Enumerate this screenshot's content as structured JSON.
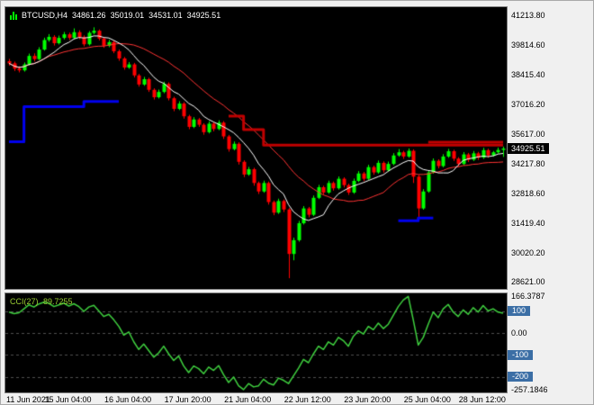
{
  "colors": {
    "chart_bg": "#000000",
    "frame_bg": "#f0f0f0",
    "candle_up": "#00ff00",
    "candle_down": "#ff0000",
    "ma_fast": "#ffffff",
    "ma_slow": "#ff3333",
    "trend_up": "#0000ee",
    "trend_down": "#c00000",
    "cci_line": "#3fd03f",
    "cci_label": "#9acd32",
    "level_tag_bg": "#3b6ea5",
    "axis_text": "#000000",
    "grid_line": "#4f4f4f",
    "price_tag_bg": "#000000",
    "price_tag_text": "#ffffff"
  },
  "header": {
    "symbol": "BTCUSD,H4",
    "open": "34861.26",
    "high": "35019.01",
    "low": "34531.01",
    "close": "34925.51"
  },
  "indicator": {
    "label": "CCI(27)",
    "value": "89.7255"
  },
  "icons": {
    "title_icon": "candlestick-chart"
  },
  "chart_data": [
    {
      "type": "candlestick",
      "symbol": "BTCUSD",
      "timeframe": "H4",
      "last_candle": {
        "open": 34861.26,
        "high": 35019.01,
        "low": 34531.01,
        "close": 34925.51
      },
      "current_price": 34925.51,
      "y_axis": {
        "ylim": [
          28300,
          41600
        ],
        "tick_values": [
          41213.8,
          39814.6,
          38415.4,
          37016.2,
          35617.0,
          34217.8,
          32818.6,
          31419.4,
          30020.2,
          28621.0
        ]
      },
      "x_axis": {
        "labels": [
          "11 Jun 2021",
          "15 Jun 04:00",
          "16 Jun 04:00",
          "17 Jun 20:00",
          "21 Jun 04:00",
          "22 Jun 12:00",
          "23 Jun 20:00",
          "25 Jun 04:00",
          "28 Jun 12:00"
        ],
        "tick_indices": [
          0,
          12,
          24,
          36,
          48,
          60,
          72,
          84,
          95
        ]
      },
      "candles": [
        [
          39050,
          39160,
          38840,
          38950
        ],
        [
          38950,
          39030,
          38590,
          38700
        ],
        [
          38700,
          38810,
          38520,
          38620
        ],
        [
          38620,
          38990,
          38560,
          38900
        ],
        [
          38900,
          39410,
          38840,
          39300
        ],
        [
          39300,
          39420,
          39040,
          39150
        ],
        [
          39150,
          39710,
          39100,
          39600
        ],
        [
          39600,
          40160,
          39550,
          40050
        ],
        [
          40050,
          40330,
          39970,
          40200
        ],
        [
          40200,
          40280,
          39790,
          39900
        ],
        [
          39900,
          40260,
          39840,
          40150
        ],
        [
          40150,
          40430,
          40080,
          40320
        ],
        [
          40320,
          40400,
          40050,
          40150
        ],
        [
          40150,
          40600,
          40100,
          40420
        ],
        [
          40420,
          40510,
          40090,
          40180
        ],
        [
          40180,
          40270,
          39750,
          39850
        ],
        [
          39850,
          40470,
          39790,
          40390
        ],
        [
          40390,
          40650,
          40320,
          40490
        ],
        [
          40490,
          40550,
          40030,
          40120
        ],
        [
          40120,
          40190,
          39680,
          39780
        ],
        [
          39780,
          40060,
          39710,
          39950
        ],
        [
          39950,
          40020,
          39430,
          39520
        ],
        [
          39520,
          39600,
          39070,
          39180
        ],
        [
          39180,
          39250,
          38650,
          38750
        ],
        [
          38750,
          39010,
          38690,
          38900
        ],
        [
          38900,
          38970,
          38280,
          38380
        ],
        [
          38380,
          38450,
          37850,
          37950
        ],
        [
          37950,
          38310,
          37890,
          38200
        ],
        [
          38200,
          38270,
          37600,
          37700
        ],
        [
          37700,
          37770,
          37240,
          37350
        ],
        [
          37350,
          37710,
          37290,
          37600
        ],
        [
          37600,
          38080,
          37540,
          37980
        ],
        [
          37980,
          38050,
          37200,
          37300
        ],
        [
          37300,
          37370,
          36690,
          36800
        ],
        [
          36800,
          37160,
          36740,
          37050
        ],
        [
          37050,
          37120,
          36340,
          36450
        ],
        [
          36450,
          36520,
          35840,
          35950
        ],
        [
          35950,
          36410,
          35890,
          36300
        ],
        [
          36300,
          36370,
          35950,
          36050
        ],
        [
          36050,
          36120,
          35580,
          35700
        ],
        [
          35700,
          36210,
          35640,
          36100
        ],
        [
          36100,
          36170,
          35740,
          35850
        ],
        [
          35850,
          36260,
          35790,
          36150
        ],
        [
          36150,
          36220,
          35380,
          35500
        ],
        [
          35500,
          35570,
          34780,
          34900
        ],
        [
          34900,
          35260,
          34840,
          35150
        ],
        [
          35150,
          35220,
          34170,
          34300
        ],
        [
          34300,
          34370,
          33580,
          33700
        ],
        [
          33700,
          34060,
          33640,
          33950
        ],
        [
          33950,
          34020,
          33170,
          33300
        ],
        [
          33300,
          33370,
          32780,
          32900
        ],
        [
          32900,
          33410,
          32840,
          33300
        ],
        [
          33300,
          33370,
          32280,
          32400
        ],
        [
          32400,
          32470,
          31780,
          31900
        ],
        [
          31900,
          32560,
          31840,
          32450
        ],
        [
          32450,
          32520,
          31930,
          32050
        ],
        [
          32050,
          32120,
          28805,
          29950
        ],
        [
          29950,
          30720,
          29650,
          30600
        ],
        [
          30600,
          31510,
          30530,
          31400
        ],
        [
          31400,
          32210,
          31340,
          32100
        ],
        [
          32100,
          32170,
          31680,
          31800
        ],
        [
          31800,
          32710,
          31740,
          32600
        ],
        [
          32600,
          33210,
          32540,
          33100
        ],
        [
          33100,
          33170,
          32740,
          32850
        ],
        [
          32850,
          33410,
          32790,
          33300
        ],
        [
          33300,
          33370,
          32940,
          33050
        ],
        [
          33050,
          33610,
          32990,
          33500
        ],
        [
          33500,
          33570,
          33090,
          33200
        ],
        [
          33200,
          33270,
          32740,
          32850
        ],
        [
          32850,
          33510,
          32790,
          33400
        ],
        [
          33400,
          33860,
          33340,
          33750
        ],
        [
          33750,
          33820,
          33390,
          33500
        ],
        [
          33500,
          34160,
          33440,
          34050
        ],
        [
          34050,
          34120,
          33690,
          33800
        ],
        [
          33800,
          34360,
          33740,
          34250
        ],
        [
          34250,
          34320,
          33790,
          33900
        ],
        [
          33900,
          34310,
          33840,
          34200
        ],
        [
          34200,
          34710,
          34140,
          34600
        ],
        [
          34600,
          34900,
          34540,
          34750
        ],
        [
          34750,
          34820,
          34440,
          34550
        ],
        [
          34550,
          34930,
          34490,
          34820
        ],
        [
          34820,
          34890,
          33300,
          33600
        ],
        [
          33600,
          33680,
          31690,
          32100
        ],
        [
          32100,
          33010,
          32040,
          32900
        ],
        [
          32900,
          33910,
          32840,
          33800
        ],
        [
          33800,
          34460,
          33740,
          34350
        ],
        [
          34350,
          34420,
          33990,
          34100
        ],
        [
          34100,
          34660,
          34040,
          34550
        ],
        [
          34550,
          34910,
          34490,
          34800
        ],
        [
          34800,
          34870,
          34340,
          34450
        ],
        [
          34450,
          34520,
          34090,
          34200
        ],
        [
          34200,
          34760,
          34140,
          34650
        ],
        [
          34650,
          34720,
          34290,
          34400
        ],
        [
          34400,
          34810,
          34340,
          34700
        ],
        [
          34700,
          34770,
          34390,
          34500
        ],
        [
          34500,
          34960,
          34440,
          34850
        ],
        [
          34850,
          34920,
          34490,
          34600
        ],
        [
          34600,
          34810,
          34540,
          34750
        ],
        [
          34750,
          34970,
          34690,
          34861
        ],
        [
          34861.26,
          35019.01,
          34531.01,
          34925.51
        ]
      ],
      "overlays": {
        "ma_fast": {
          "type": "sma",
          "period": 8
        },
        "ma_slow": {
          "type": "sma",
          "period": 20
        },
        "trend_segments": [
          {
            "dir": "up",
            "points": [
              [
                0,
                35250
              ],
              [
                3,
                35250
              ],
              [
                3,
                36900
              ],
              [
                15,
                36900
              ],
              [
                15,
                37150
              ],
              [
                22,
                37150
              ]
            ]
          },
          {
            "dir": "up",
            "points": [
              [
                78,
                31520
              ],
              [
                82,
                31520
              ],
              [
                82,
                31650
              ],
              [
                85,
                31650
              ]
            ]
          },
          {
            "dir": "down",
            "points": [
              [
                44,
                36460
              ],
              [
                47,
                36460
              ],
              [
                47,
                35820
              ],
              [
                51,
                35820
              ],
              [
                51,
                35090
              ],
              [
                99,
                35090
              ]
            ]
          },
          {
            "dir": "down",
            "points": [
              [
                84,
                35230
              ],
              [
                99,
                35230
              ]
            ]
          }
        ]
      }
    },
    {
      "type": "line",
      "name": "CCI(27)",
      "period": 27,
      "current_value": 89.7255,
      "y_axis": {
        "ylim": [
          -270,
          180
        ],
        "labels": [
          {
            "text": "166.3787",
            "value": 166.3787,
            "tag": false,
            "line": false
          },
          {
            "text": "100",
            "value": 100,
            "tag": true,
            "line": true
          },
          {
            "text": "0.00",
            "value": 0,
            "tag": false,
            "line": true
          },
          {
            "text": "-100",
            "value": -100,
            "tag": true,
            "line": true
          },
          {
            "text": "-200",
            "value": -200,
            "tag": true,
            "line": true
          },
          {
            "text": "-257.1846",
            "value": -257.1846,
            "tag": false,
            "line": false
          }
        ]
      },
      "values": [
        95,
        88,
        92,
        110,
        128,
        118,
        132,
        140,
        135,
        120,
        128,
        136,
        122,
        133,
        120,
        98,
        118,
        126,
        100,
        75,
        85,
        60,
        30,
        -10,
        5,
        -40,
        -75,
        -50,
        -80,
        -110,
        -90,
        -60,
        -95,
        -125,
        -105,
        -150,
        -180,
        -150,
        -162,
        -185,
        -155,
        -170,
        -148,
        -190,
        -225,
        -200,
        -240,
        -257.18,
        -230,
        -245,
        -240,
        -210,
        -228,
        -236,
        -205,
        -215,
        -230,
        -195,
        -160,
        -120,
        -135,
        -95,
        -60,
        -75,
        -40,
        -55,
        -20,
        -35,
        -60,
        -15,
        10,
        -5,
        30,
        15,
        45,
        20,
        40,
        80,
        120,
        150,
        166.38,
        60,
        -55,
        -20,
        40,
        95,
        70,
        110,
        130,
        95,
        75,
        105,
        85,
        115,
        95,
        125,
        100,
        110,
        95,
        89.73
      ]
    }
  ]
}
